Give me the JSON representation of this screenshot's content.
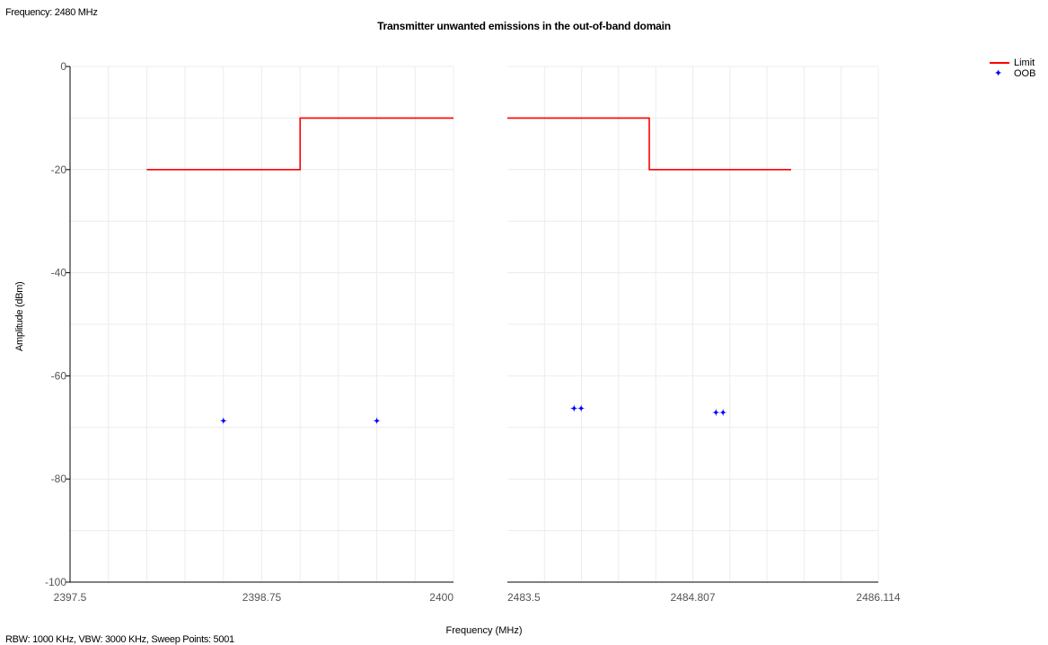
{
  "header": {
    "frequency_label": "Frequency: 2480 MHz",
    "title": "Transmitter unwanted emissions in the out-of-band domain"
  },
  "footer": {
    "settings": "RBW: 1000 KHz,  VBW: 3000 KHz,  Sweep Points: 5001"
  },
  "legend": {
    "position": "top-right",
    "items": [
      {
        "label": "Limit",
        "color": "#ff0000",
        "style": "line"
      },
      {
        "label": "OOB",
        "color": "#0000ff",
        "style": "star-marker"
      }
    ]
  },
  "chart_data": [
    {
      "type": "line",
      "panel": "lower band edge",
      "xlabel": "Frequency (MHz)",
      "ylabel": "Amplitude (dBm)",
      "xlim": [
        2397.5,
        2400
      ],
      "ylim": [
        -100,
        0
      ],
      "x_ticks": [
        "2397.5",
        "2398.75",
        "2400"
      ],
      "y_ticks": [
        "0",
        "-20",
        "-40",
        "-60",
        "-80",
        "-100"
      ],
      "grid": true,
      "series": [
        {
          "name": "Limit",
          "color": "#ff0000",
          "points": [
            [
              2398.0,
              -20
            ],
            [
              2399.0,
              -20
            ],
            [
              2399.0,
              -10
            ],
            [
              2400.0,
              -10
            ]
          ]
        },
        {
          "name": "OOB",
          "color": "#0000ff",
          "marker": "star",
          "points": [
            [
              2398.5,
              -68.7
            ],
            [
              2399.5,
              -68.7
            ]
          ]
        }
      ]
    },
    {
      "type": "line",
      "panel": "upper band edge",
      "xlabel": "Frequency (MHz)",
      "ylabel": "Amplitude (dBm)",
      "xlim": [
        2483.5,
        2486.114
      ],
      "ylim": [
        -100,
        0
      ],
      "x_ticks": [
        "2483.5",
        "2484.807",
        "2486.114"
      ],
      "grid": true,
      "series": [
        {
          "name": "Limit",
          "color": "#ff0000",
          "points": [
            [
              2483.5,
              -10
            ],
            [
              2484.5,
              -10
            ],
            [
              2484.5,
              -20
            ],
            [
              2485.5,
              -20
            ]
          ]
        },
        {
          "name": "OOB",
          "color": "#0000ff",
          "marker": "star",
          "points": [
            [
              2483.97,
              -66.3
            ],
            [
              2484.02,
              -66.3
            ],
            [
              2484.97,
              -67.1
            ],
            [
              2485.02,
              -67.1
            ]
          ]
        }
      ]
    }
  ]
}
